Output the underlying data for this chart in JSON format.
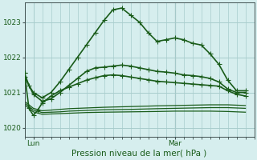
{
  "title": "Pression niveau de la mer( hPa )",
  "bg_color": "#d6eeee",
  "grid_color": "#a8cccc",
  "line_color": "#1a5c1a",
  "ylim": [
    1019.75,
    1023.55
  ],
  "yticks": [
    1020,
    1021,
    1022,
    1023
  ],
  "xlim": [
    0,
    52
  ],
  "lun_x": 2,
  "mar_x": 34,
  "vline_x": 34,
  "series": [
    {
      "x": [
        0,
        1,
        2,
        4,
        6,
        8,
        10,
        12,
        14,
        16,
        18,
        20,
        22,
        24,
        26,
        28,
        30,
        32,
        34,
        36,
        38,
        40,
        42,
        44,
        46,
        48,
        50
      ],
      "y": [
        1021.55,
        1021.2,
        1021.0,
        1020.85,
        1021.0,
        1021.3,
        1021.65,
        1022.0,
        1022.35,
        1022.7,
        1023.05,
        1023.35,
        1023.4,
        1023.2,
        1023.0,
        1022.7,
        1022.45,
        1022.5,
        1022.55,
        1022.5,
        1022.4,
        1022.35,
        1022.1,
        1021.8,
        1021.35,
        1021.05,
        1021.05
      ],
      "marker": "+",
      "lw": 1.2,
      "ms": 4
    },
    {
      "x": [
        0,
        2,
        4,
        6,
        8,
        10,
        12,
        14,
        16,
        18,
        20,
        22,
        24,
        26,
        28,
        30,
        32,
        34,
        36,
        38,
        40,
        42,
        44,
        46,
        48,
        50
      ],
      "y": [
        1021.45,
        1020.95,
        1020.75,
        1020.82,
        1021.0,
        1021.2,
        1021.4,
        1021.6,
        1021.7,
        1021.72,
        1021.75,
        1021.78,
        1021.75,
        1021.7,
        1021.65,
        1021.6,
        1021.58,
        1021.55,
        1021.5,
        1021.48,
        1021.45,
        1021.4,
        1021.3,
        1021.1,
        1021.0,
        1021.0
      ],
      "marker": "+",
      "lw": 1.2,
      "ms": 4
    },
    {
      "x": [
        0,
        1,
        2,
        3,
        4,
        6,
        8,
        10,
        12,
        14,
        16,
        18,
        20,
        22,
        24,
        26,
        28,
        30,
        32,
        34,
        36,
        38,
        40,
        42,
        44,
        46,
        48,
        50
      ],
      "y": [
        1021.55,
        1020.55,
        1020.35,
        1020.5,
        1020.7,
        1020.9,
        1021.05,
        1021.15,
        1021.25,
        1021.35,
        1021.42,
        1021.48,
        1021.5,
        1021.48,
        1021.44,
        1021.4,
        1021.36,
        1021.32,
        1021.3,
        1021.28,
        1021.26,
        1021.24,
        1021.22,
        1021.2,
        1021.18,
        1021.05,
        1020.95,
        1020.9
      ],
      "marker": "+",
      "lw": 1.2,
      "ms": 4
    },
    {
      "x": [
        0,
        2,
        4,
        6,
        8,
        10,
        14,
        18,
        24,
        30,
        34,
        38,
        42,
        46,
        50
      ],
      "y": [
        1020.75,
        1020.55,
        1020.48,
        1020.5,
        1020.52,
        1020.54,
        1020.56,
        1020.58,
        1020.6,
        1020.62,
        1020.63,
        1020.64,
        1020.65,
        1020.65,
        1020.63
      ],
      "marker": null,
      "lw": 0.9,
      "ms": 0
    },
    {
      "x": [
        0,
        2,
        4,
        6,
        8,
        10,
        14,
        18,
        24,
        30,
        34,
        38,
        42,
        46,
        50
      ],
      "y": [
        1020.7,
        1020.5,
        1020.43,
        1020.44,
        1020.45,
        1020.47,
        1020.49,
        1020.51,
        1020.52,
        1020.54,
        1020.55,
        1020.56,
        1020.57,
        1020.57,
        1020.55
      ],
      "marker": null,
      "lw": 0.9,
      "ms": 0
    },
    {
      "x": [
        0,
        2,
        4,
        6,
        8,
        10,
        14,
        18,
        24,
        30,
        34,
        38,
        42,
        46,
        50
      ],
      "y": [
        1020.65,
        1020.45,
        1020.38,
        1020.39,
        1020.4,
        1020.41,
        1020.43,
        1020.44,
        1020.45,
        1020.46,
        1020.47,
        1020.47,
        1020.47,
        1020.46,
        1020.44
      ],
      "marker": null,
      "lw": 0.9,
      "ms": 0
    }
  ]
}
